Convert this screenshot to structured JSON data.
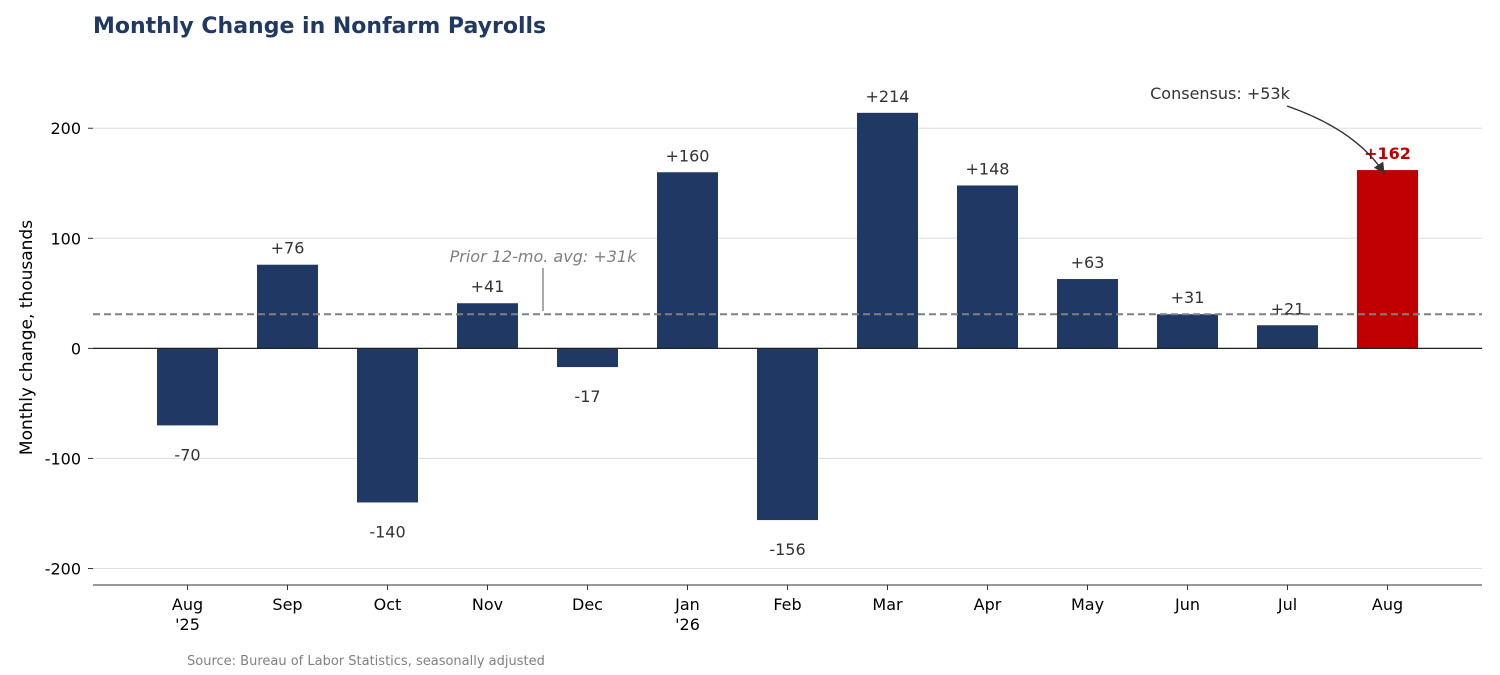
{
  "chart_data": {
    "type": "bar",
    "title": "Monthly Change in Nonfarm Payrolls",
    "ylabel": "Monthly change, thousands",
    "source": "Source: Bureau of Labor Statistics, seasonally adjusted",
    "categories": [
      [
        "Aug",
        "'25"
      ],
      [
        "Sep"
      ],
      [
        "Oct"
      ],
      [
        "Nov"
      ],
      [
        "Dec"
      ],
      [
        "Jan",
        "'26"
      ],
      [
        "Feb"
      ],
      [
        "Mar"
      ],
      [
        "Apr"
      ],
      [
        "May"
      ],
      [
        "Jun"
      ],
      [
        "Jul"
      ],
      [
        "Aug"
      ]
    ],
    "values": [
      -70,
      76,
      -140,
      41,
      -17,
      160,
      -156,
      214,
      148,
      63,
      31,
      21,
      162
    ],
    "data_labels": [
      "-70",
      "+76",
      "-140",
      "+41",
      "-17",
      "+160",
      "-156",
      "+214",
      "+148",
      "+63",
      "+31",
      "+21",
      "+162"
    ],
    "highlight_index": 12,
    "ylim": [
      -215,
      262
    ],
    "yticks": [
      -200,
      -100,
      0,
      100,
      200
    ],
    "grid": true,
    "reference_line": {
      "value": 31,
      "label": "Prior 12-mo. avg: +31k"
    },
    "annotation": {
      "text": "Consensus: +53k"
    },
    "colors": {
      "bar": "#1f3864",
      "highlight": "#c00000",
      "title": "#1f3864",
      "reference": "#808080",
      "grid": "#dddddd",
      "axis": "#333333"
    }
  }
}
